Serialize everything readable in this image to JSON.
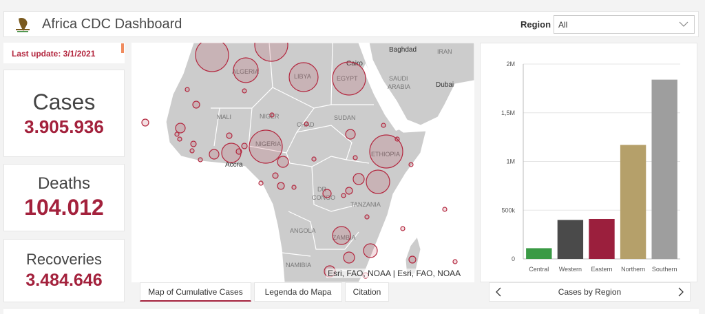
{
  "header": {
    "title": "Africa CDC Dashboard",
    "region_label": "Region",
    "region_value": "All"
  },
  "last_update": "Last update: 3/1/2021",
  "stats": {
    "cases": {
      "label": "Cases",
      "value": "3.905.936"
    },
    "deaths": {
      "label": "Deaths",
      "value": "104.012"
    },
    "recoveries": {
      "label": "Recoveries",
      "value": "3.484.646"
    }
  },
  "map": {
    "attribution": "Esri, FAO, NOAA | Esri, FAO, NOAA",
    "place_labels": [
      "Baghdad",
      "IRAN",
      "Cairo",
      "SAUDI",
      "ARABIA",
      "Dubai",
      "ALGERIA",
      "LIBYA",
      "EGYPT",
      "MALI",
      "NIGER",
      "CHAD",
      "SUDAN",
      "NIGERIA",
      "ETHIOPIA",
      "Accra",
      "DR",
      "CONGO",
      "TANZANIA",
      "ANGOLA",
      "ZAMBIA",
      "NAMIBIA"
    ],
    "tabs": [
      "Map of Cumulative Cases",
      "Legenda do Mapa",
      "Citation"
    ]
  },
  "chart_nav": {
    "label": "Cases by Region"
  },
  "colors": {
    "accent": "#a3213c",
    "circle_stroke": "#b3263e",
    "land": "#cccccc",
    "water": "#ffffff"
  },
  "chart_data": {
    "type": "bar",
    "title": "Cases by Region",
    "categories": [
      "Central",
      "Western",
      "Eastern",
      "Northern",
      "Southern"
    ],
    "values": [
      110000,
      400000,
      410000,
      1170000,
      1840000
    ],
    "colors": [
      "#3a9a45",
      "#4a4a4a",
      "#9b1f3d",
      "#b5a06a",
      "#9e9e9e"
    ],
    "ylim": [
      0,
      2000000
    ],
    "yticks": [
      0,
      500000,
      1000000,
      1500000,
      2000000
    ],
    "ytick_labels": [
      "0",
      "500k",
      "1M",
      "1,5M",
      "2M"
    ],
    "grid": true
  }
}
